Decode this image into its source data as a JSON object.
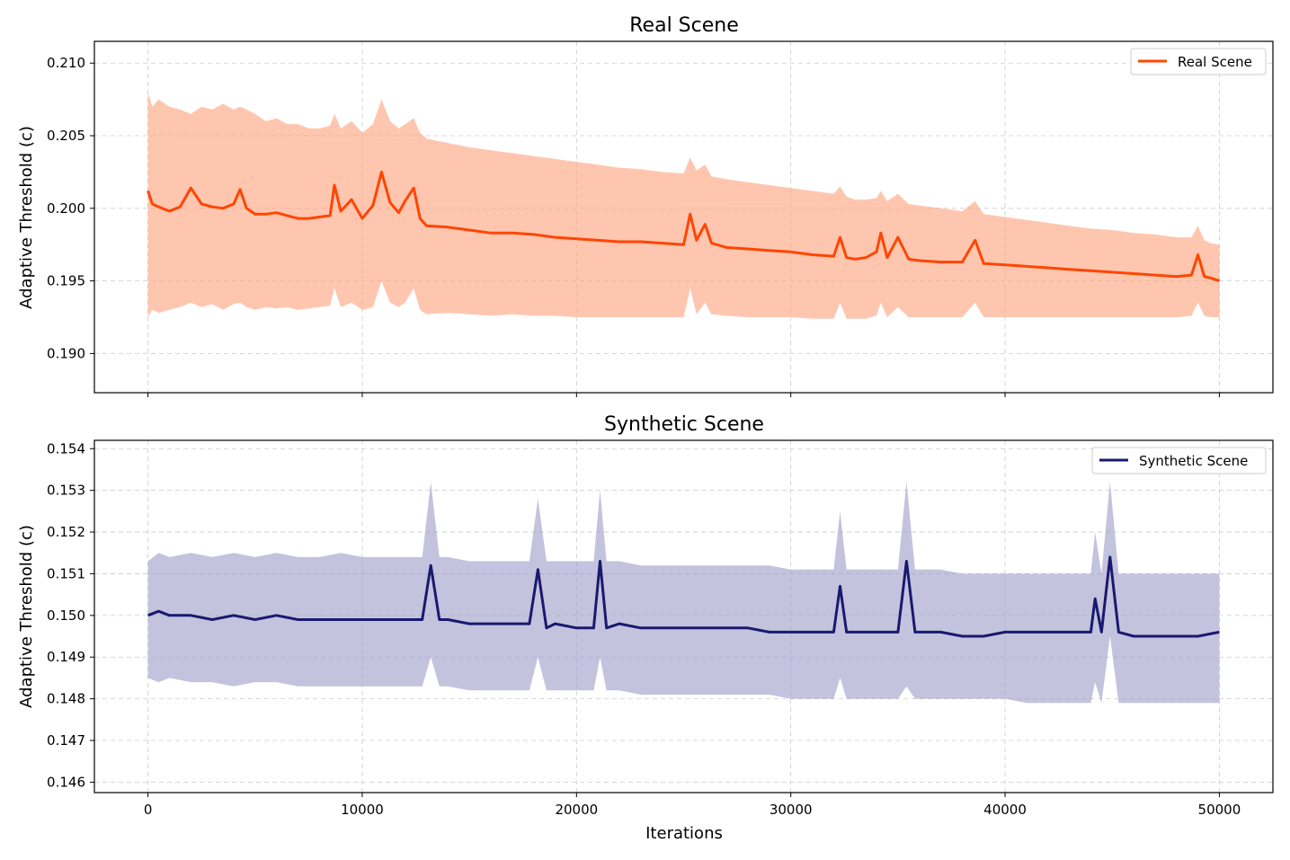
{
  "chart_data": [
    {
      "type": "line",
      "title": "Real Scene",
      "xlabel": "",
      "ylabel": "Adaptive Threshold (c)",
      "xlim": [
        0,
        50000
      ],
      "ylim": [
        0.1873,
        0.2115
      ],
      "yticks": [
        "0.190",
        "0.195",
        "0.200",
        "0.205",
        "0.210"
      ],
      "xticks": [
        "0",
        "10000",
        "20000",
        "30000",
        "40000",
        "50000"
      ],
      "grid": true,
      "legend_position": "top-right",
      "series": [
        {
          "name": "Real Scene",
          "color": "#FF4500",
          "band_color": "#FFA07A",
          "x": [
            0,
            200,
            500,
            1000,
            1500,
            2000,
            2500,
            3000,
            3500,
            4000,
            4300,
            4600,
            5000,
            5500,
            6000,
            6500,
            7000,
            7500,
            8000,
            8500,
            8700,
            9000,
            9500,
            10000,
            10500,
            10900,
            11300,
            11700,
            12000,
            12400,
            12700,
            13000,
            14000,
            15000,
            16000,
            17000,
            18000,
            19000,
            20000,
            21000,
            22000,
            23000,
            24000,
            25000,
            25300,
            25600,
            26000,
            26300,
            27000,
            28000,
            29000,
            30000,
            31000,
            32000,
            32300,
            32600,
            33000,
            33500,
            34000,
            34200,
            34500,
            35000,
            35500,
            36000,
            37000,
            38000,
            38600,
            39000,
            40000,
            41000,
            42000,
            43000,
            44000,
            45000,
            46000,
            47000,
            48000,
            48700,
            49000,
            49300,
            49600,
            50000
          ],
          "y": [
            0.2012,
            0.2003,
            0.2001,
            0.1998,
            0.2001,
            0.2014,
            0.2003,
            0.2001,
            0.2,
            0.2003,
            0.2013,
            0.2,
            0.1996,
            0.1996,
            0.1997,
            0.1995,
            0.1993,
            0.1993,
            0.1994,
            0.1995,
            0.2016,
            0.1998,
            0.2006,
            0.1993,
            0.2002,
            0.2025,
            0.2004,
            0.1997,
            0.2005,
            0.2014,
            0.1993,
            0.1988,
            0.1987,
            0.1985,
            0.1983,
            0.1983,
            0.1982,
            0.198,
            0.1979,
            0.1978,
            0.1977,
            0.1977,
            0.1976,
            0.1975,
            0.1996,
            0.1978,
            0.1989,
            0.1976,
            0.1973,
            0.1972,
            0.1971,
            0.197,
            0.1968,
            0.1967,
            0.198,
            0.1966,
            0.1965,
            0.1966,
            0.197,
            0.1983,
            0.1966,
            0.198,
            0.1965,
            0.1964,
            0.1963,
            0.1963,
            0.1978,
            0.1962,
            0.1961,
            0.196,
            0.1959,
            0.1958,
            0.1957,
            0.1956,
            0.1955,
            0.1954,
            0.1953,
            0.1954,
            0.1968,
            0.1953,
            0.1952,
            0.195
          ],
          "band_upper": [
            0.208,
            0.207,
            0.2075,
            0.207,
            0.2068,
            0.2065,
            0.207,
            0.2068,
            0.2072,
            0.2068,
            0.207,
            0.2068,
            0.2065,
            0.206,
            0.2062,
            0.2058,
            0.2058,
            0.2055,
            0.2055,
            0.2057,
            0.2065,
            0.2055,
            0.206,
            0.2052,
            0.2058,
            0.2075,
            0.206,
            0.2055,
            0.2058,
            0.2062,
            0.2052,
            0.2048,
            0.2045,
            0.2042,
            0.204,
            0.2038,
            0.2036,
            0.2034,
            0.2032,
            0.203,
            0.2028,
            0.2027,
            0.2025,
            0.2024,
            0.2035,
            0.2026,
            0.203,
            0.2022,
            0.202,
            0.2018,
            0.2016,
            0.2014,
            0.2012,
            0.201,
            0.2015,
            0.2008,
            0.2006,
            0.2006,
            0.2007,
            0.2012,
            0.2005,
            0.201,
            0.2003,
            0.2002,
            0.2,
            0.1998,
            0.2005,
            0.1996,
            0.1994,
            0.1992,
            0.199,
            0.1988,
            0.1986,
            0.1985,
            0.1983,
            0.1982,
            0.198,
            0.198,
            0.1988,
            0.1978,
            0.1976,
            0.1975
          ],
          "band_lower": [
            0.1925,
            0.193,
            0.1928,
            0.193,
            0.1932,
            0.1935,
            0.1932,
            0.1934,
            0.193,
            0.1934,
            0.1935,
            0.1932,
            0.193,
            0.1932,
            0.1931,
            0.1932,
            0.193,
            0.1931,
            0.1932,
            0.1933,
            0.1945,
            0.1932,
            0.1935,
            0.193,
            0.1932,
            0.195,
            0.1935,
            0.1932,
            0.1935,
            0.1945,
            0.193,
            0.1927,
            0.1928,
            0.1927,
            0.1926,
            0.1927,
            0.1926,
            0.1926,
            0.1925,
            0.1925,
            0.1925,
            0.1925,
            0.1925,
            0.1925,
            0.1945,
            0.1927,
            0.1935,
            0.1927,
            0.1926,
            0.1925,
            0.1925,
            0.1925,
            0.1924,
            0.1924,
            0.1935,
            0.1924,
            0.1924,
            0.1924,
            0.1926,
            0.1935,
            0.1925,
            0.1932,
            0.1925,
            0.1925,
            0.1925,
            0.1925,
            0.1935,
            0.1925,
            0.1925,
            0.1925,
            0.1925,
            0.1925,
            0.1925,
            0.1925,
            0.1925,
            0.1925,
            0.1925,
            0.1926,
            0.1935,
            0.1926,
            0.1925,
            0.1925
          ]
        }
      ]
    },
    {
      "type": "line",
      "title": "Synthetic Scene",
      "xlabel": "Iterations",
      "ylabel": "Adaptive Threshold (c)",
      "xlim": [
        -2500,
        52500
      ],
      "ylim": [
        0.14575,
        0.1542
      ],
      "yticks": [
        "0.146",
        "0.147",
        "0.148",
        "0.149",
        "0.150",
        "0.151",
        "0.152",
        "0.153",
        "0.154"
      ],
      "xticks": [
        "0",
        "10000",
        "20000",
        "30000",
        "40000",
        "50000"
      ],
      "grid": true,
      "legend_position": "top-right",
      "series": [
        {
          "name": "Synthetic Scene",
          "color": "#191970",
          "band_color": "#9B9BC8",
          "x": [
            0,
            500,
            1000,
            2000,
            3000,
            4000,
            5000,
            6000,
            7000,
            8000,
            9000,
            10000,
            11000,
            12000,
            12800,
            13200,
            13600,
            14000,
            15000,
            16000,
            17000,
            17800,
            18200,
            18600,
            19000,
            20000,
            20800,
            21100,
            21400,
            22000,
            23000,
            24000,
            25000,
            26000,
            27000,
            28000,
            29000,
            30000,
            31000,
            32000,
            32300,
            32600,
            33000,
            34000,
            35000,
            35400,
            35800,
            36000,
            37000,
            38000,
            39000,
            40000,
            41000,
            42000,
            43000,
            44000,
            44200,
            44500,
            44900,
            45300,
            46000,
            47000,
            48000,
            49000,
            50000
          ],
          "y": [
            0.15,
            0.1501,
            0.15,
            0.15,
            0.1499,
            0.15,
            0.1499,
            0.15,
            0.1499,
            0.1499,
            0.1499,
            0.1499,
            0.1499,
            0.1499,
            0.1499,
            0.1512,
            0.1499,
            0.1499,
            0.1498,
            0.1498,
            0.1498,
            0.1498,
            0.1511,
            0.1497,
            0.1498,
            0.1497,
            0.1497,
            0.1513,
            0.1497,
            0.1498,
            0.1497,
            0.1497,
            0.1497,
            0.1497,
            0.1497,
            0.1497,
            0.1496,
            0.1496,
            0.1496,
            0.1496,
            0.1507,
            0.1496,
            0.1496,
            0.1496,
            0.1496,
            0.1513,
            0.1496,
            0.1496,
            0.1496,
            0.1495,
            0.1495,
            0.1496,
            0.1496,
            0.1496,
            0.1496,
            0.1496,
            0.1504,
            0.1496,
            0.1514,
            0.1496,
            0.1495,
            0.1495,
            0.1495,
            0.1495,
            0.1496
          ],
          "band_upper": [
            0.1513,
            0.1515,
            0.1514,
            0.1515,
            0.1514,
            0.1515,
            0.1514,
            0.1515,
            0.1514,
            0.1514,
            0.1515,
            0.1514,
            0.1514,
            0.1514,
            0.1514,
            0.1532,
            0.1514,
            0.1514,
            0.1513,
            0.1513,
            0.1513,
            0.1513,
            0.1528,
            0.1513,
            0.1513,
            0.1513,
            0.1513,
            0.153,
            0.1513,
            0.1513,
            0.1512,
            0.1512,
            0.1512,
            0.1512,
            0.1512,
            0.1512,
            0.1512,
            0.1511,
            0.1511,
            0.1511,
            0.1525,
            0.1511,
            0.1511,
            0.1511,
            0.1511,
            0.1532,
            0.1511,
            0.1511,
            0.1511,
            0.151,
            0.151,
            0.151,
            0.151,
            0.151,
            0.151,
            0.151,
            0.152,
            0.151,
            0.1532,
            0.151,
            0.151,
            0.151,
            0.151,
            0.151,
            0.151
          ],
          "band_lower": [
            0.1485,
            0.1484,
            0.1485,
            0.1484,
            0.1484,
            0.1483,
            0.1484,
            0.1484,
            0.1483,
            0.1483,
            0.1483,
            0.1483,
            0.1483,
            0.1483,
            0.1483,
            0.149,
            0.1483,
            0.1483,
            0.1482,
            0.1482,
            0.1482,
            0.1482,
            0.149,
            0.1482,
            0.1482,
            0.1482,
            0.1482,
            0.149,
            0.1482,
            0.1482,
            0.1481,
            0.1481,
            0.1481,
            0.1481,
            0.1481,
            0.1481,
            0.1481,
            0.148,
            0.148,
            0.148,
            0.1485,
            0.148,
            0.148,
            0.148,
            0.148,
            0.1483,
            0.148,
            0.148,
            0.148,
            0.148,
            0.148,
            0.148,
            0.1479,
            0.1479,
            0.1479,
            0.1479,
            0.1484,
            0.1479,
            0.1495,
            0.1479,
            0.1479,
            0.1479,
            0.1479,
            0.1479,
            0.1479
          ]
        }
      ]
    }
  ]
}
